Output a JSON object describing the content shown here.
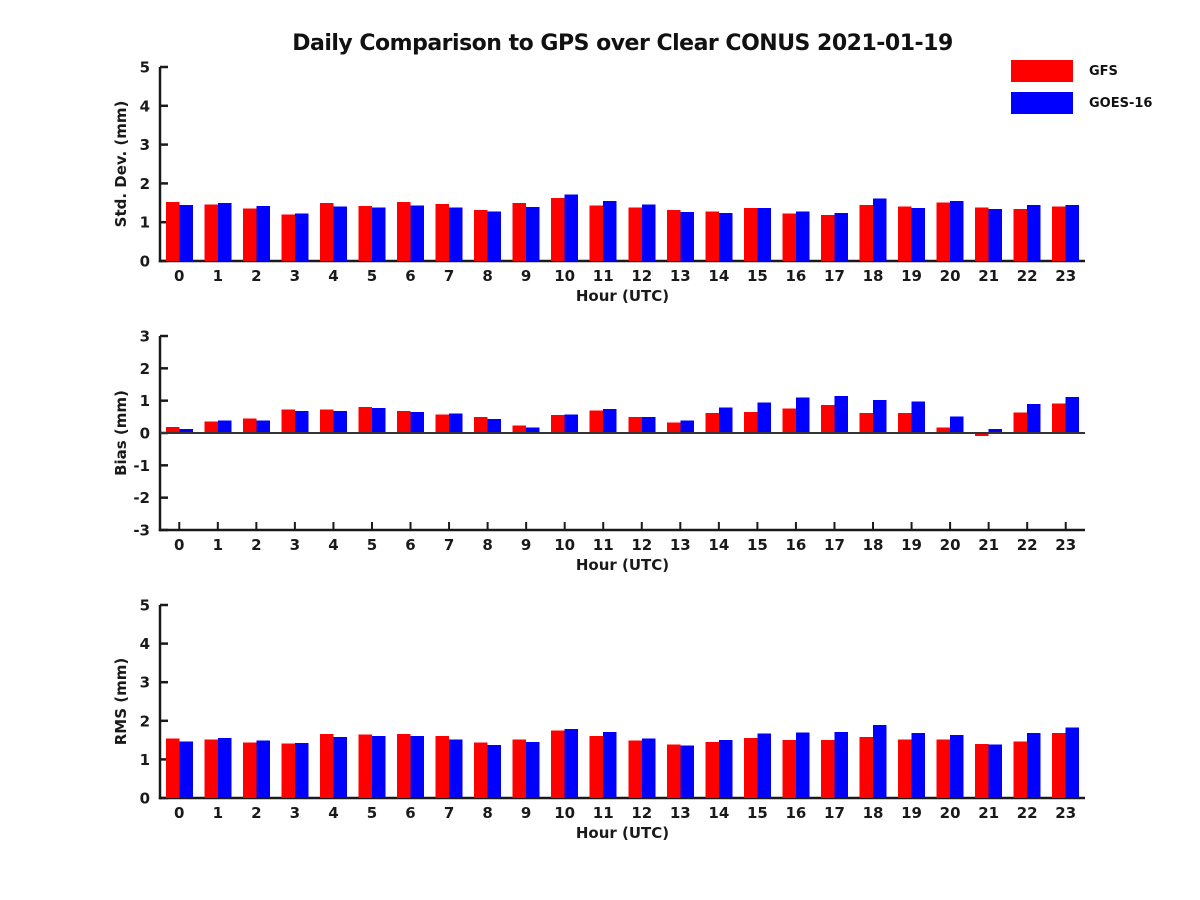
{
  "title": "Daily Comparison to GPS over Clear CONUS 2021-01-19",
  "colors": {
    "gfs_red": "#ff0000",
    "goes16_blue": "#0000ff",
    "axis_black": "#1a1a1a",
    "background": "#ffffff"
  },
  "legend": [
    {
      "label": "GFS",
      "color": "#ff0000"
    },
    {
      "label": "GOES-16",
      "color": "#0000ff"
    }
  ],
  "chart_data": [
    {
      "type": "bar",
      "name": "std-dev-panel",
      "title": "",
      "ylabel": "Std. Dev. (mm)",
      "xlabel": "Hour (UTC)",
      "ylim": [
        0,
        5
      ],
      "yticks": [
        0,
        1,
        2,
        3,
        4,
        5
      ],
      "grid": false,
      "legend_position": "figure-top-right",
      "categories": [
        "0",
        "1",
        "2",
        "3",
        "4",
        "5",
        "6",
        "7",
        "8",
        "9",
        "10",
        "11",
        "12",
        "13",
        "14",
        "15",
        "16",
        "17",
        "18",
        "19",
        "20",
        "21",
        "22",
        "23"
      ],
      "series": [
        {
          "name": "GFS",
          "color": "#ff0000",
          "values": [
            1.52,
            1.46,
            1.35,
            1.2,
            1.5,
            1.42,
            1.52,
            1.47,
            1.32,
            1.49,
            1.63,
            1.43,
            1.38,
            1.31,
            1.27,
            1.36,
            1.23,
            1.18,
            1.44,
            1.41,
            1.51,
            1.38,
            1.34,
            1.41
          ]
        },
        {
          "name": "GOES-16",
          "color": "#0000ff",
          "values": [
            1.44,
            1.5,
            1.42,
            1.22,
            1.4,
            1.38,
            1.43,
            1.38,
            1.28,
            1.39,
            1.71,
            1.55,
            1.45,
            1.26,
            1.24,
            1.36,
            1.27,
            1.24,
            1.61,
            1.36,
            1.54,
            1.34,
            1.44,
            1.44
          ]
        }
      ]
    },
    {
      "type": "bar",
      "name": "bias-panel",
      "title": "",
      "ylabel": "Bias (mm)",
      "xlabel": "Hour (UTC)",
      "ylim": [
        -3,
        3
      ],
      "yticks": [
        -3,
        -2,
        -1,
        0,
        1,
        2,
        3
      ],
      "grid": false,
      "legend_position": "figure-top-right",
      "categories": [
        "0",
        "1",
        "2",
        "3",
        "4",
        "5",
        "6",
        "7",
        "8",
        "9",
        "10",
        "11",
        "12",
        "13",
        "14",
        "15",
        "16",
        "17",
        "18",
        "19",
        "20",
        "21",
        "22",
        "23"
      ],
      "series": [
        {
          "name": "GFS",
          "color": "#ff0000",
          "values": [
            0.19,
            0.36,
            0.45,
            0.73,
            0.72,
            0.8,
            0.68,
            0.57,
            0.49,
            0.23,
            0.56,
            0.7,
            0.5,
            0.33,
            0.62,
            0.65,
            0.76,
            0.86,
            0.62,
            0.62,
            0.17,
            -0.09,
            0.64,
            0.92
          ]
        },
        {
          "name": "GOES-16",
          "color": "#0000ff",
          "values": [
            0.12,
            0.38,
            0.39,
            0.68,
            0.68,
            0.78,
            0.65,
            0.6,
            0.43,
            0.17,
            0.57,
            0.74,
            0.5,
            0.38,
            0.79,
            0.94,
            1.1,
            1.15,
            1.02,
            0.98,
            0.51,
            0.13,
            0.89,
            1.11
          ]
        }
      ]
    },
    {
      "type": "bar",
      "name": "rms-panel",
      "title": "",
      "ylabel": "RMS (mm)",
      "xlabel": "Hour (UTC)",
      "ylim": [
        0,
        5
      ],
      "yticks": [
        0,
        1,
        2,
        3,
        4,
        5
      ],
      "grid": false,
      "legend_position": "figure-top-right",
      "categories": [
        "0",
        "1",
        "2",
        "3",
        "4",
        "5",
        "6",
        "7",
        "8",
        "9",
        "10",
        "11",
        "12",
        "13",
        "14",
        "15",
        "16",
        "17",
        "18",
        "19",
        "20",
        "21",
        "22",
        "23"
      ],
      "series": [
        {
          "name": "GFS",
          "color": "#ff0000",
          "values": [
            1.54,
            1.52,
            1.44,
            1.41,
            1.66,
            1.64,
            1.66,
            1.6,
            1.44,
            1.51,
            1.75,
            1.6,
            1.49,
            1.39,
            1.45,
            1.55,
            1.5,
            1.5,
            1.58,
            1.52,
            1.52,
            1.4,
            1.47,
            1.68
          ]
        },
        {
          "name": "GOES-16",
          "color": "#0000ff",
          "values": [
            1.46,
            1.56,
            1.49,
            1.42,
            1.58,
            1.6,
            1.6,
            1.52,
            1.37,
            1.45,
            1.79,
            1.71,
            1.54,
            1.36,
            1.5,
            1.67,
            1.7,
            1.71,
            1.89,
            1.68,
            1.63,
            1.38,
            1.69,
            1.83
          ]
        }
      ]
    }
  ]
}
